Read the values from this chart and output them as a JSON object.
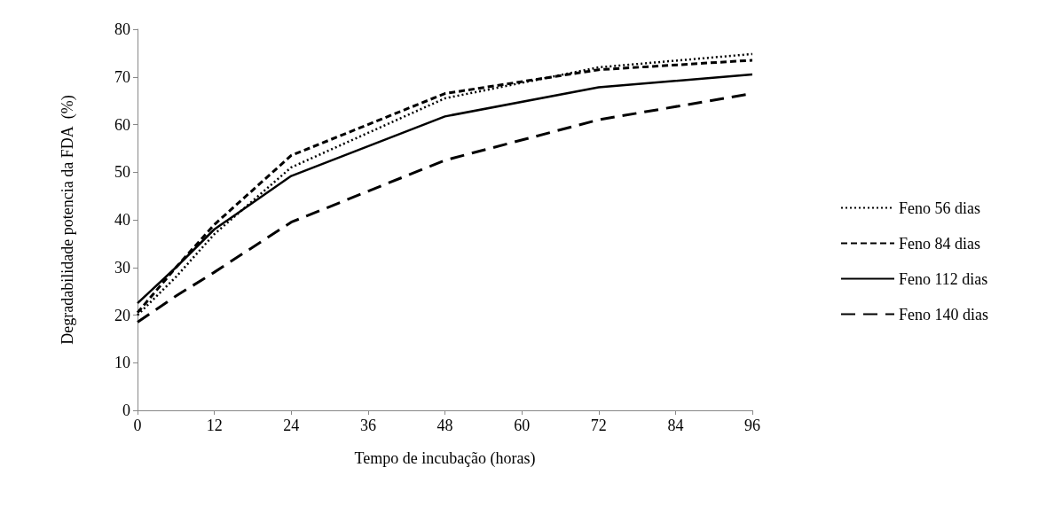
{
  "chart_data": {
    "type": "line",
    "xlabel": "Tempo de incubação (horas)",
    "ylabel": "Degradabilidade potencia da FDA  (%)",
    "x": [
      0,
      6,
      12,
      24,
      48,
      72,
      96
    ],
    "xlim": [
      0,
      96
    ],
    "xticks": [
      0,
      12,
      24,
      36,
      48,
      60,
      72,
      84,
      96
    ],
    "ylim": [
      0,
      80
    ],
    "yticks": [
      0,
      10,
      20,
      30,
      40,
      50,
      60,
      70,
      80
    ],
    "grid": false,
    "legend": "right",
    "marker": "none",
    "series": [
      {
        "name": "Feno 56 dias",
        "color": "#000000",
        "line_style": "dotted",
        "values": [
          20,
          28,
          37,
          51,
          65.5,
          72,
          74.8
        ]
      },
      {
        "name": "Feno 84 dias",
        "color": "#000000",
        "line_style": "dashed",
        "values": [
          20.5,
          30,
          39,
          53.5,
          66.5,
          71.5,
          73.5
        ]
      },
      {
        "name": "Feno 112 dias",
        "color": "#000000",
        "line_style": "solid",
        "values": [
          22.5,
          30,
          38,
          49.2,
          61.7,
          67.8,
          70.5
        ]
      },
      {
        "name": "Feno 140 dias",
        "color": "#000000",
        "line_style": "longdash",
        "values": [
          18.5,
          24,
          29,
          39.5,
          52.5,
          61,
          66.5
        ]
      }
    ]
  }
}
